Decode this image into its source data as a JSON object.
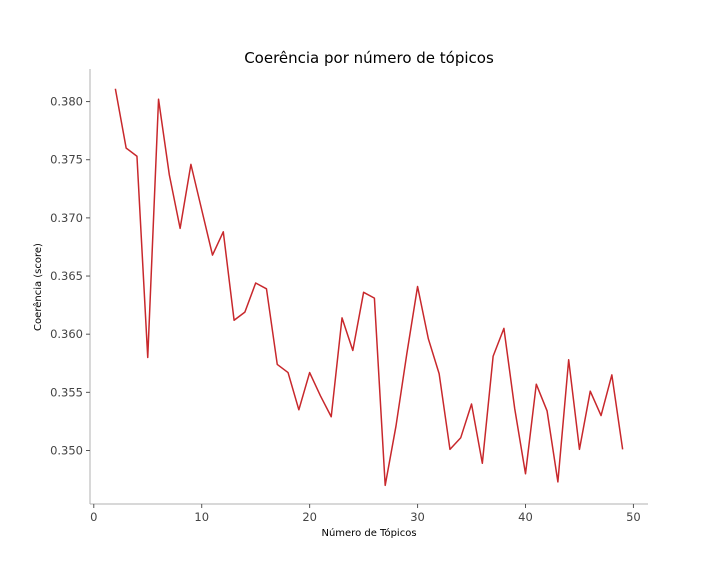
{
  "chart_data": {
    "type": "line",
    "title": "Coerência por número de tópicos",
    "xlabel": "Número de Tópicos",
    "ylabel": "Coerência (score)",
    "xlim": [
      -0.35,
      51.35
    ],
    "ylim": [
      0.3454,
      0.3828
    ],
    "xticks": [
      0,
      10,
      20,
      30,
      40,
      50
    ],
    "yticks": [
      0.35,
      0.355,
      0.36,
      0.365,
      0.37,
      0.375,
      0.38
    ],
    "xtick_labels": [
      "0",
      "10",
      "20",
      "30",
      "40",
      "50"
    ],
    "ytick_labels": [
      "0.350",
      "0.355",
      "0.360",
      "0.365",
      "0.370",
      "0.375",
      "0.380"
    ],
    "grid": false,
    "legend": "none",
    "series": [
      {
        "color": "#c8282c",
        "x": [
          2,
          3,
          4,
          5,
          6,
          7,
          8,
          9,
          10,
          11,
          12,
          13,
          14,
          15,
          16,
          17,
          18,
          19,
          20,
          21,
          22,
          23,
          24,
          25,
          26,
          27,
          28,
          29,
          30,
          31,
          32,
          33,
          34,
          35,
          36,
          37,
          38,
          39,
          40,
          41,
          42,
          43,
          44,
          45,
          46,
          47,
          48,
          49
        ],
        "y": [
          0.3811,
          0.376,
          0.3753,
          0.358,
          0.3802,
          0.3737,
          0.3691,
          0.3746,
          0.3707,
          0.3668,
          0.3688,
          0.3612,
          0.3619,
          0.3644,
          0.3639,
          0.3574,
          0.3567,
          0.3535,
          0.3567,
          0.3547,
          0.3529,
          0.3614,
          0.3586,
          0.3636,
          0.3631,
          0.347,
          0.3521,
          0.3583,
          0.3641,
          0.3596,
          0.3566,
          0.3501,
          0.3511,
          0.354,
          0.3489,
          0.3581,
          0.3605,
          0.3536,
          0.348,
          0.3557,
          0.3534,
          0.3473,
          0.3578,
          0.3501,
          0.3551,
          0.353,
          0.3565,
          0.3501
        ]
      }
    ]
  }
}
